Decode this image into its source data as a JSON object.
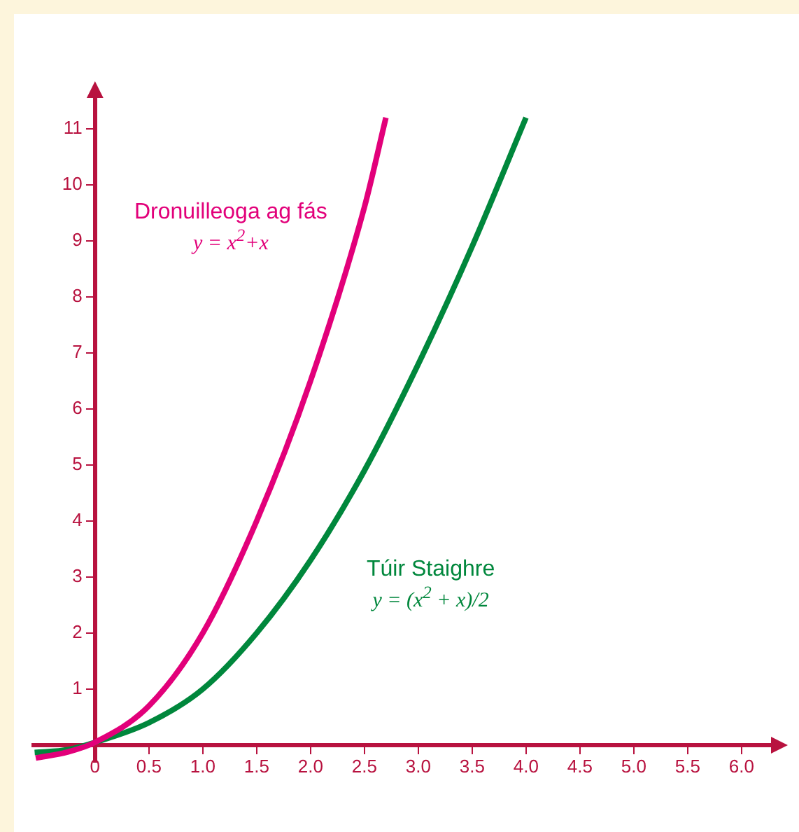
{
  "chart_data": {
    "type": "line",
    "series": [
      {
        "name": "Dronuilleoga ag fás",
        "color": "#e2007a",
        "x": [
          -0.55,
          -0.25,
          0,
          0.5,
          1.0,
          1.5,
          2.0,
          2.5,
          2.7
        ],
        "values": [
          -0.23,
          -0.12,
          0.05,
          0.7,
          2.0,
          4.0,
          6.5,
          9.6,
          11.2
        ]
      },
      {
        "name": "Túir Staighre",
        "color": "#00873c",
        "x": [
          -0.56,
          -0.25,
          0,
          0.5,
          1.0,
          1.5,
          2.0,
          2.5,
          3.0,
          3.5,
          4.0
        ],
        "values": [
          -0.13,
          -0.08,
          0.05,
          0.4,
          1.0,
          2.0,
          3.3,
          4.9,
          6.8,
          8.9,
          11.2
        ]
      }
    ],
    "annotations": [
      "y = x$^{2}$+x",
      "y = (x$^{2}$ + x)/2"
    ],
    "xlim": [
      -0.57,
      6.3
    ],
    "ylim": [
      -0.3,
      11.6
    ],
    "xticks": [
      0,
      {
        "value": 0.5,
        "label": "0.5"
      },
      {
        "value": 1,
        "label": "1.0"
      },
      {
        "value": 1.5,
        "label": "1.5"
      },
      {
        "value": 2,
        "label": "2.0"
      },
      {
        "value": 2.5,
        "label": "2.5"
      },
      {
        "value": 3,
        "label": "3.0"
      },
      {
        "value": 3.5,
        "label": "3.5"
      },
      {
        "value": 4,
        "label": "4.0"
      },
      {
        "value": 4.5,
        "label": "4.5"
      },
      {
        "value": 5,
        "label": "5.0"
      },
      {
        "value": 5.5,
        "label": "5.5"
      },
      {
        "value": 6,
        "label": "6.0"
      }
    ],
    "yticks": [
      1,
      2,
      3,
      4,
      5,
      6,
      7,
      8,
      9,
      10,
      11
    ],
    "grid": false,
    "legend": false,
    "marker": "none",
    "line_style": "solid"
  }
}
